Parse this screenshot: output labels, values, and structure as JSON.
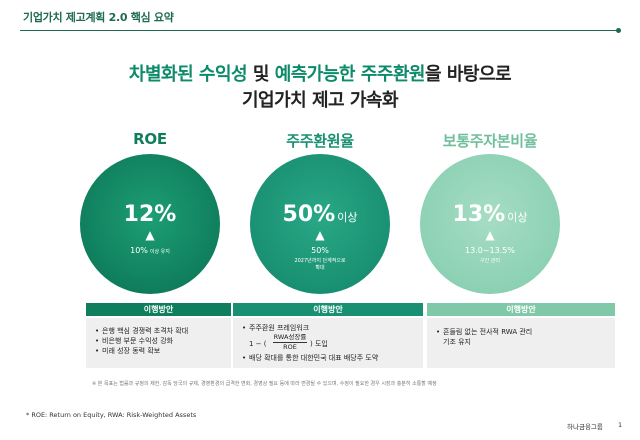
{
  "header": {
    "title": "기업가치 제고계획 2.0 핵심 요약"
  },
  "headline": {
    "line1_pre": "차별화된 수익성",
    "line1_conj": " 및 ",
    "line1_mid": "예측가능한 주주환원",
    "line1_post": "을 바탕으로",
    "line2": "기업가치 제고 가속화"
  },
  "columns": [
    {
      "label": "ROE",
      "value": "12%",
      "suffix": "",
      "sub": "10%",
      "sub_note": "이상 유지",
      "note1": "",
      "note2": "",
      "panel_title": "이행방안",
      "items": [
        "은행 핵심 경쟁력 초격차 확대",
        "비은행 부문 수익성 강화",
        "미래 성장 동력 확보"
      ]
    },
    {
      "label": "주주환원율",
      "value": "50%",
      "suffix": "이상",
      "sub": "50%",
      "sub_note": "",
      "note1": "2027년까지 단계적으로",
      "note2": "확대",
      "panel_title": "이행방안",
      "items": [
        "주주환원 프레임워크",
        "배당 확대를 통한 대한민국 대표 배당주 도약"
      ],
      "formula": {
        "pre": "1 − (",
        "num": "RWA성장률",
        "den": "ROE",
        "post": ") 도입"
      }
    },
    {
      "label": "보통주자본비율",
      "value": "13%",
      "suffix": "이상",
      "sub": "13.0~13.5%",
      "sub_note": "",
      "note1": "구간 관리",
      "note2": "",
      "panel_title": "이행방안",
      "items": [
        "흔들림 없는 전사적 RWA 관리",
        "기조 유지"
      ]
    }
  ],
  "disclaimer": "※ 본 목표는 법률과 규정의 제한, 감독 당국의 규제, 경영환경의 급격한 변화, 경영상 필요 등에 따라 변경될 수 있으며, 수정이 필요한 경우 시장과 충분히 소통할 예정",
  "footnote": "* ROE: Return on Equity, RWA: Risk-Weighted Assets",
  "footer": {
    "brand": "하나금융그룹",
    "page": "1"
  },
  "colors": {
    "dark_green": "#0f7e5c",
    "mid_green": "#199072",
    "light_green": "#7fc8a8",
    "accent": "#0d8a6a"
  }
}
